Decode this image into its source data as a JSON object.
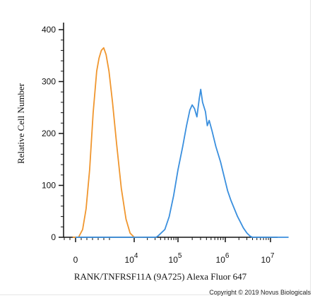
{
  "chart_data": {
    "type": "line",
    "title": "",
    "xlabel": "RANK/TNFRSF11A (9A725) Alexa Fluor 647",
    "ylabel": "Relative Cell Number",
    "ylim": [
      0,
      400
    ],
    "x_scale": "biexponential",
    "y_ticks": [
      {
        "label": "0",
        "value": 0
      },
      {
        "label": "100",
        "value": 100
      },
      {
        "label": "200",
        "value": 200
      },
      {
        "label": "300",
        "value": 300
      },
      {
        "label": "400",
        "value": 400
      }
    ],
    "x_ticks": [
      {
        "base": "0",
        "exp": ""
      },
      {
        "base": "10",
        "exp": "4"
      },
      {
        "base": "10",
        "exp": "5"
      },
      {
        "base": "10",
        "exp": "6"
      },
      {
        "base": "10",
        "exp": "7"
      }
    ],
    "grid": false,
    "legend": "none",
    "series": [
      {
        "color": "#f0962e",
        "points": [
          [
            -0.05,
            0
          ],
          [
            0.05,
            0
          ],
          [
            0.12,
            15
          ],
          [
            0.18,
            55
          ],
          [
            0.24,
            130
          ],
          [
            0.3,
            240
          ],
          [
            0.36,
            320
          ],
          [
            0.4,
            345
          ],
          [
            0.44,
            360
          ],
          [
            0.48,
            365
          ],
          [
            0.52,
            352
          ],
          [
            0.57,
            320
          ],
          [
            0.63,
            260
          ],
          [
            0.7,
            180
          ],
          [
            0.78,
            95
          ],
          [
            0.86,
            35
          ],
          [
            0.93,
            8
          ],
          [
            1.0,
            0
          ],
          [
            1.2,
            0
          ]
        ]
      },
      {
        "color": "#3a8fde",
        "points": [
          [
            0.0,
            0
          ],
          [
            1.5,
            0
          ],
          [
            1.55,
            3
          ],
          [
            1.7,
            15
          ],
          [
            1.8,
            40
          ],
          [
            1.9,
            80
          ],
          [
            2.0,
            130
          ],
          [
            2.1,
            175
          ],
          [
            2.18,
            215
          ],
          [
            2.25,
            245
          ],
          [
            2.3,
            255
          ],
          [
            2.35,
            248
          ],
          [
            2.4,
            232
          ],
          [
            2.45,
            268
          ],
          [
            2.48,
            285
          ],
          [
            2.52,
            260
          ],
          [
            2.58,
            242
          ],
          [
            2.62,
            215
          ],
          [
            2.66,
            225
          ],
          [
            2.72,
            205
          ],
          [
            2.8,
            175
          ],
          [
            2.9,
            145
          ],
          [
            2.98,
            115
          ],
          [
            3.05,
            90
          ],
          [
            3.12,
            72
          ],
          [
            3.2,
            55
          ],
          [
            3.27,
            40
          ],
          [
            3.33,
            30
          ],
          [
            3.4,
            18
          ],
          [
            3.48,
            8
          ],
          [
            3.55,
            2
          ],
          [
            3.6,
            0
          ],
          [
            4.4,
            0
          ]
        ]
      }
    ]
  },
  "copyright": "Copyright © 2019 Novus Biologicals"
}
